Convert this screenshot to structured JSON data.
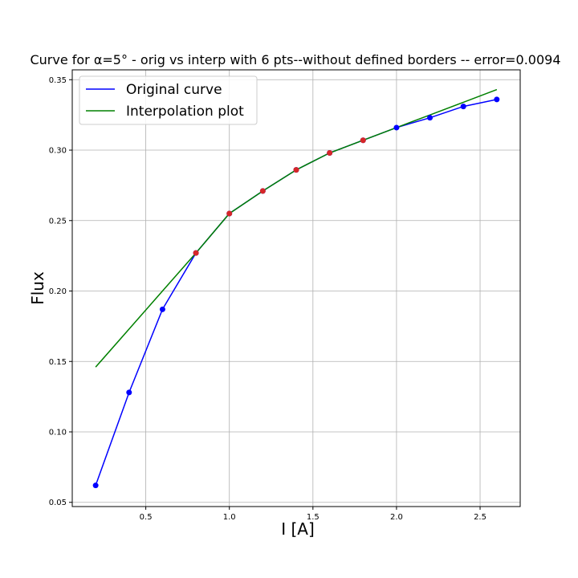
{
  "chart_data": {
    "type": "line",
    "title": "Curve for α=5° - orig vs interp with 6 pts--without defined borders -- error=0.0094",
    "xlabel": "I [A]",
    "ylabel": "Flux",
    "xlim": [
      0.06,
      2.74
    ],
    "ylim": [
      0.047,
      0.357
    ],
    "xticks": [
      0.5,
      1.0,
      1.5,
      2.0,
      2.5
    ],
    "xtick_labels": [
      "0.5",
      "1.0",
      "1.5",
      "2.0",
      "2.5"
    ],
    "yticks": [
      0.05,
      0.1,
      0.15,
      0.2,
      0.25,
      0.3,
      0.35
    ],
    "ytick_labels": [
      "0.05",
      "0.10",
      "0.15",
      "0.20",
      "0.25",
      "0.30",
      "0.35"
    ],
    "grid": true,
    "legend": "upper-left",
    "series": [
      {
        "name": "Original curve",
        "color": "#0000ff",
        "marker": "circle",
        "x": [
          0.2,
          0.4,
          0.6,
          0.8,
          1.0,
          1.2,
          1.4,
          1.6,
          1.8,
          2.0,
          2.2,
          2.4,
          2.6
        ],
        "y": [
          0.062,
          0.128,
          0.187,
          0.227,
          0.255,
          0.271,
          0.286,
          0.298,
          0.307,
          0.316,
          0.323,
          0.331,
          0.336
        ]
      },
      {
        "name": "Interpolation plot",
        "color": "#008000",
        "marker": "none",
        "x": [
          0.2,
          0.4,
          0.6,
          0.8,
          1.0,
          1.2,
          1.4,
          1.6,
          1.8,
          2.0,
          2.2,
          2.4,
          2.6
        ],
        "y": [
          0.146,
          0.173,
          0.2,
          0.227,
          0.255,
          0.271,
          0.286,
          0.298,
          0.307,
          0.316,
          0.325,
          0.334,
          0.343
        ]
      }
    ],
    "interpolation_points": {
      "color": "#d62728",
      "x": [
        0.8,
        1.0,
        1.2,
        1.4,
        1.6,
        1.8
      ],
      "y": [
        0.227,
        0.255,
        0.271,
        0.286,
        0.298,
        0.307
      ]
    }
  }
}
